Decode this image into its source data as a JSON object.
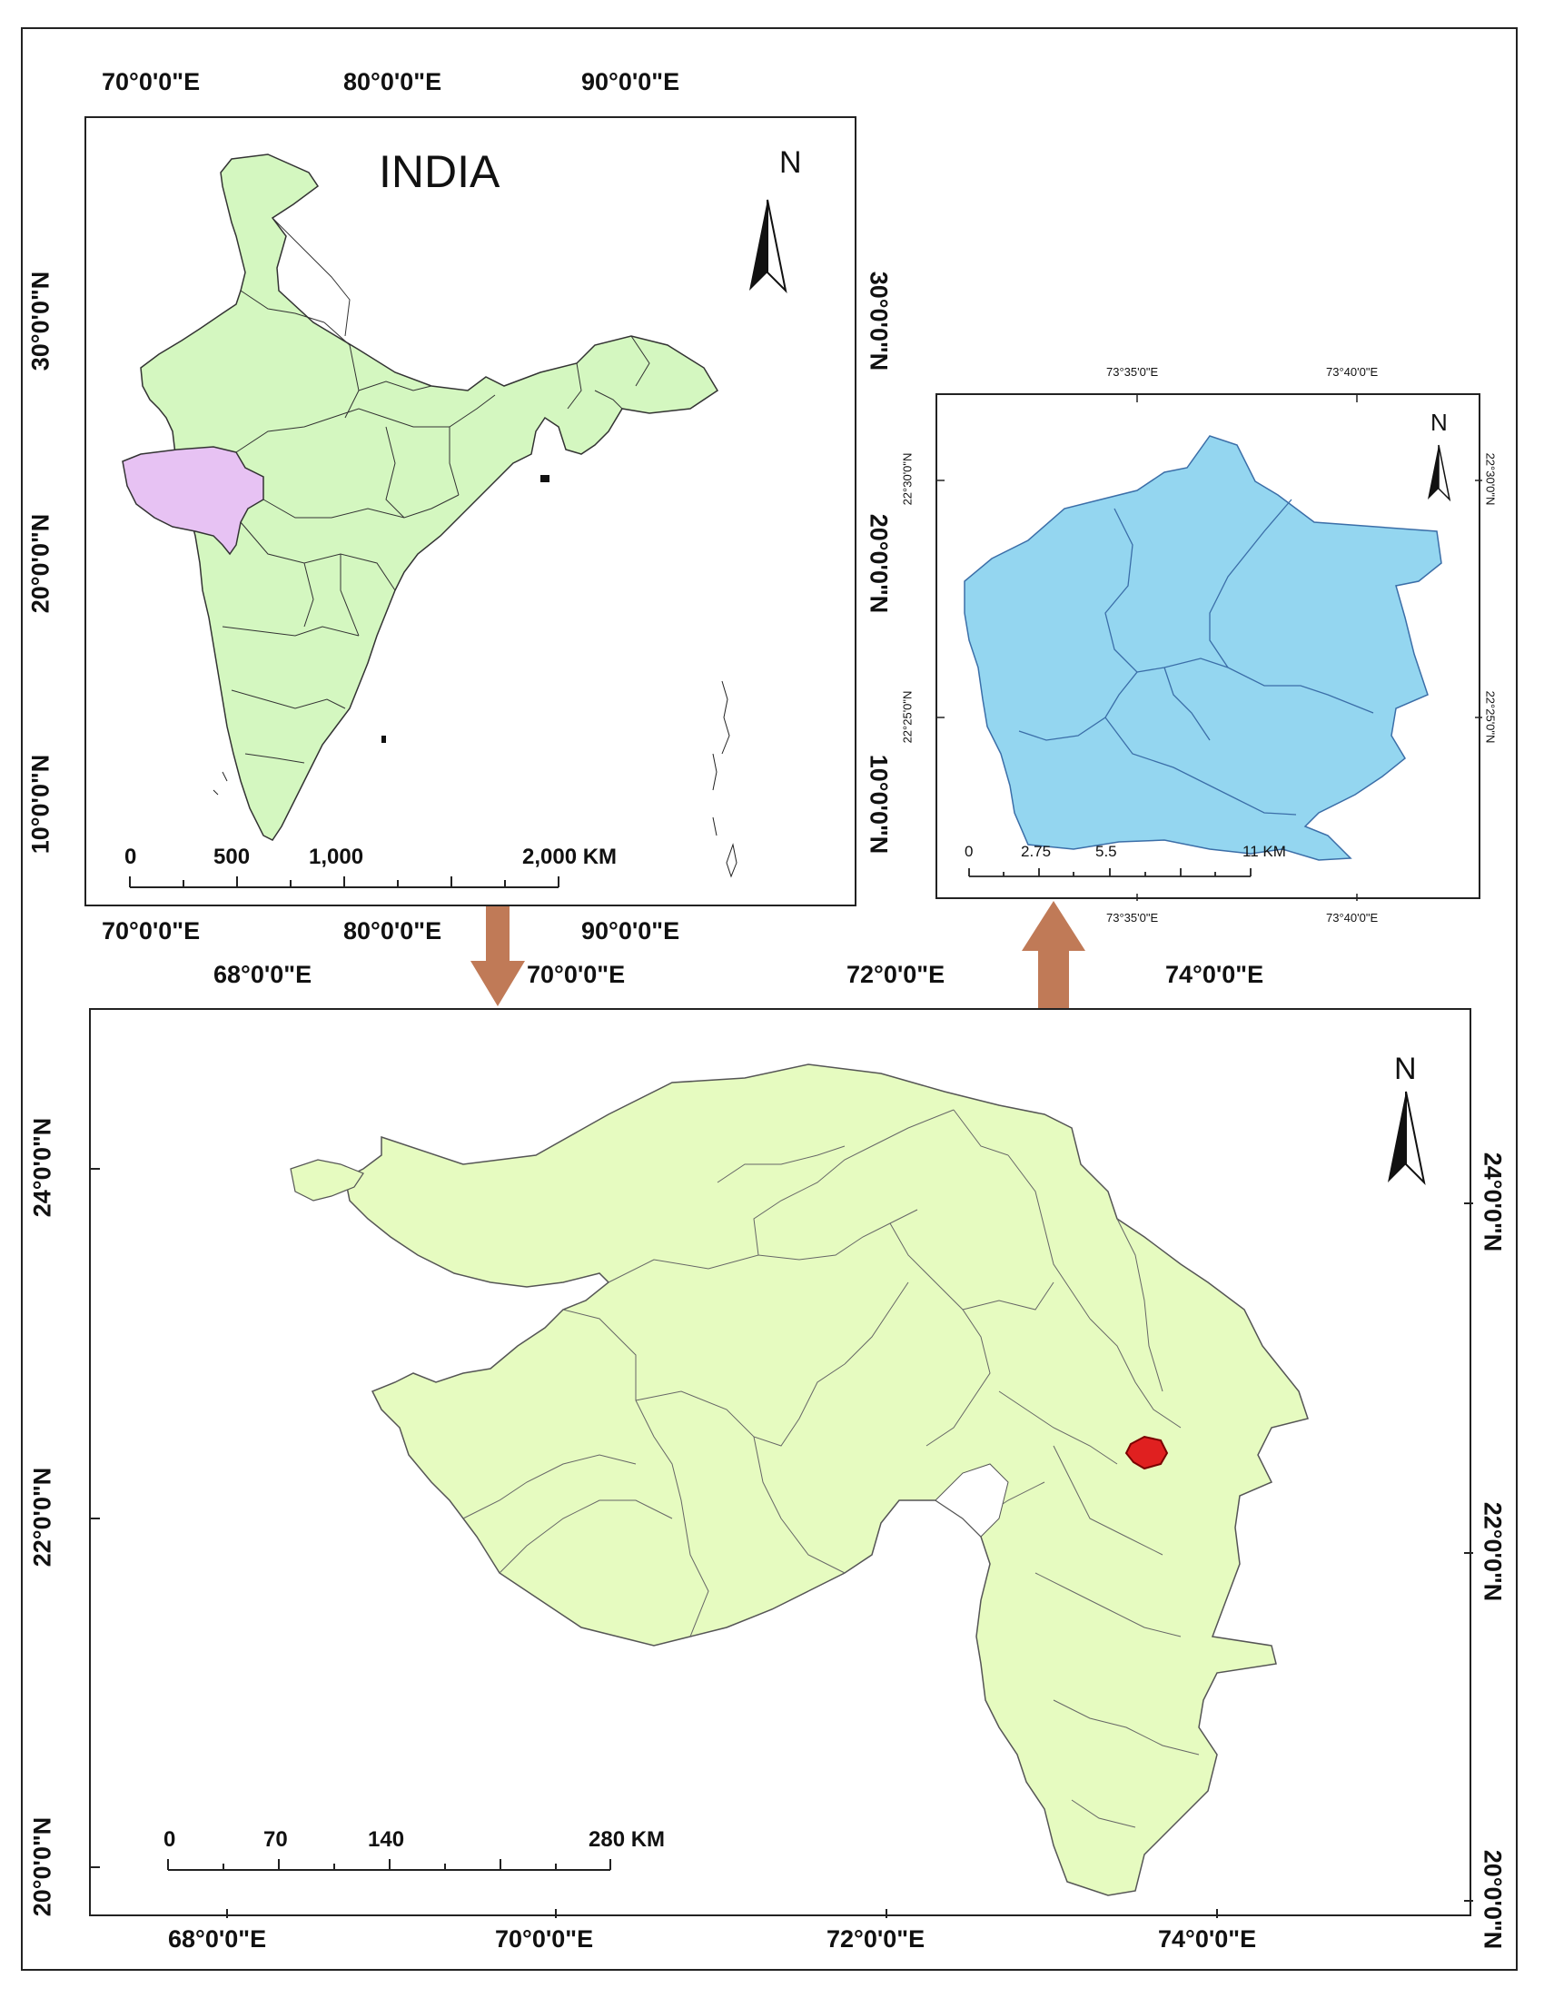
{
  "india_map": {
    "title": "INDIA",
    "north_label": "N",
    "top_lon_labels": [
      "70°0'0\"E",
      "80°0'0\"E",
      "90°0'0\"E"
    ],
    "bottom_lon_labels": [
      "70°0'0\"E",
      "80°0'0\"E",
      "90°0'0\"E"
    ],
    "left_lat_labels": [
      "30°0'0\"N",
      "20°0'0\"N",
      "10°0'0\"N"
    ],
    "right_lat_labels": [
      "30°0'0\"N",
      "20°0'0\"N",
      "10°0'0\"N"
    ],
    "scale_labels": [
      "0",
      "500",
      "1,000",
      "2,000 KM"
    ],
    "colors": {
      "country_fill": "#d4f7c0",
      "highlight_state_fill": "#e7c2f3",
      "outline": "#333333"
    }
  },
  "watershed_map": {
    "north_label": "N",
    "top_lon_labels": [
      "73°35'0\"E",
      "73°40'0\"E"
    ],
    "bottom_lon_labels": [
      "73°35'0\"E",
      "73°40'0\"E"
    ],
    "left_lat_labels": [
      "22°30'0\"N",
      "22°25'0\"N"
    ],
    "right_lat_labels": [
      "22°30'0\"N",
      "22°25'0\"N"
    ],
    "scale_labels": [
      "0",
      "2.75",
      "5.5",
      "11 KM"
    ],
    "colors": {
      "watershed_fill": "#94d6f0",
      "outline": "#3b6ea8"
    }
  },
  "gujarat_map": {
    "north_label": "N",
    "top_lon_labels": [
      "68°0'0\"E",
      "70°0'0\"E",
      "72°0'0\"E",
      "74°0'0\"E"
    ],
    "bottom_lon_labels": [
      "68°0'0\"E",
      "70°0'0\"E",
      "72°0'0\"E",
      "74°0'0\"E"
    ],
    "left_lat_labels": [
      "24°0'0\"N",
      "22°0'0\"N",
      "20°0'0\"N"
    ],
    "right_lat_labels": [
      "24°0'0\"N",
      "22°0'0\"N",
      "20°0'0\"N"
    ],
    "scale_labels": [
      "0",
      "70",
      "140",
      "280 KM"
    ],
    "colors": {
      "state_fill": "#e6fbc0",
      "study_area": "#e02020",
      "outline": "#555555"
    }
  },
  "arrows": {
    "color": "#c07a57"
  }
}
